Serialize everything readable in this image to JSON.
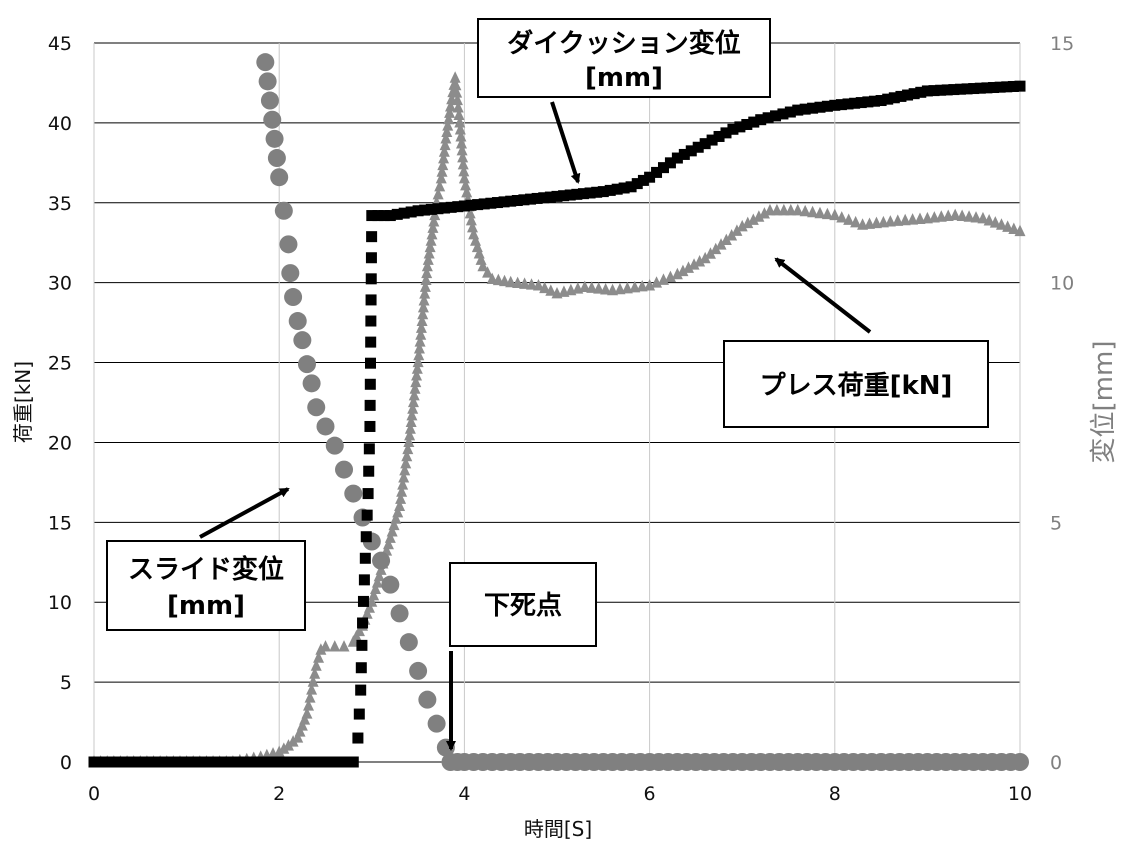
{
  "chart_data": {
    "type": "scatter",
    "xlabel": "時間[S]",
    "ylabel": "荷重[kN]",
    "y2label": "変位[mm]",
    "xlim": [
      0,
      10
    ],
    "ylim": [
      0,
      45
    ],
    "y2lim": [
      0,
      15
    ],
    "x_ticks": [
      "0",
      "2",
      "4",
      "6",
      "8",
      "10"
    ],
    "y_ticks": [
      "0",
      "5",
      "10",
      "15",
      "20",
      "25",
      "30",
      "35",
      "40",
      "45"
    ],
    "y2_ticks": [
      "0",
      "5",
      "10",
      "15"
    ],
    "grid": true,
    "series": [
      {
        "name": "プレス荷重[kN]",
        "axis": "left",
        "marker": "triangle",
        "color": "#8c8c8c",
        "x": [
          0,
          0.5,
          1.0,
          1.5,
          1.8,
          2.0,
          2.1,
          2.2,
          2.3,
          2.35,
          2.4,
          2.45,
          2.5,
          2.6,
          2.7,
          2.8,
          2.9,
          3.0,
          3.1,
          3.2,
          3.3,
          3.4,
          3.5,
          3.55,
          3.6,
          3.65,
          3.7,
          3.75,
          3.8,
          3.85,
          3.9,
          3.95,
          4.0,
          4.1,
          4.2,
          4.3,
          4.5,
          4.8,
          5.0,
          5.3,
          5.6,
          6.0,
          6.3,
          6.6,
          7.0,
          7.3,
          7.6,
          8.0,
          8.3,
          8.6,
          9.0,
          9.3,
          9.6,
          10.0
        ],
        "y": [
          0,
          0,
          0,
          0,
          0.3,
          0.6,
          1.0,
          1.5,
          3,
          4.5,
          6,
          7.0,
          7.2,
          7.2,
          7.2,
          7.5,
          8.5,
          10,
          12,
          14,
          16,
          20,
          25,
          28,
          31,
          33,
          35,
          36.5,
          39,
          41,
          42.8,
          40,
          36.5,
          33,
          31,
          30.2,
          30,
          29.8,
          29.3,
          29.7,
          29.5,
          29.8,
          30.5,
          31.5,
          33.5,
          34.5,
          34.5,
          34.2,
          33.6,
          33.8,
          34.0,
          34.2,
          34.0,
          33.2
        ]
      },
      {
        "name": "ダイクッション変位[mm]",
        "axis": "right",
        "marker": "square",
        "color": "#000000",
        "x": [
          0,
          0.5,
          1.0,
          1.5,
          2.0,
          2.5,
          2.8,
          2.85,
          2.88,
          2.9,
          2.92,
          2.94,
          2.96,
          2.98,
          3.0,
          3.2,
          3.5,
          4.0,
          4.5,
          5.0,
          5.5,
          5.8,
          6.0,
          6.3,
          6.6,
          6.9,
          7.2,
          7.6,
          8.0,
          8.5,
          9.0,
          9.5,
          10.0
        ],
        "y": [
          0,
          0,
          0,
          0,
          0,
          0,
          0,
          0.5,
          1.5,
          2.9,
          3.8,
          4.7,
          5.6,
          7.0,
          11.4,
          11.4,
          11.5,
          11.6,
          11.7,
          11.8,
          11.9,
          12.0,
          12.2,
          12.6,
          12.9,
          13.2,
          13.4,
          13.6,
          13.7,
          13.8,
          14.0,
          14.05,
          14.1
        ]
      },
      {
        "name": "スライド変位[mm]",
        "axis": "right",
        "marker": "circle",
        "color": "#808080",
        "x": [
          1.85,
          1.9,
          1.95,
          2.0,
          2.05,
          2.1,
          2.12,
          2.15,
          2.2,
          2.25,
          2.3,
          2.35,
          2.4,
          2.5,
          2.6,
          2.7,
          2.8,
          2.9,
          3.0,
          3.1,
          3.2,
          3.3,
          3.4,
          3.5,
          3.6,
          3.7,
          3.8,
          3.85,
          4.0,
          4.5,
          5.0,
          6.0,
          7.0,
          8.0,
          9.0,
          10.0
        ],
        "y": [
          14.6,
          13.8,
          13.0,
          12.2,
          11.5,
          10.8,
          10.2,
          9.7,
          9.2,
          8.8,
          8.3,
          7.9,
          7.4,
          7.0,
          6.6,
          6.1,
          5.6,
          5.1,
          4.6,
          4.2,
          3.7,
          3.1,
          2.5,
          1.9,
          1.3,
          0.8,
          0.3,
          0,
          0,
          0,
          0,
          0,
          0,
          0,
          0,
          0
        ]
      }
    ],
    "annotations": {
      "die_cushion": {
        "line1": "ダイクッション変位",
        "line2": "[mm]"
      },
      "press_load": {
        "line1": "プレス荷重[kN]"
      },
      "slide_disp": {
        "line1": "スライド変位",
        "line2": "[mm]"
      },
      "bdc": {
        "line1": "下死点"
      }
    }
  }
}
